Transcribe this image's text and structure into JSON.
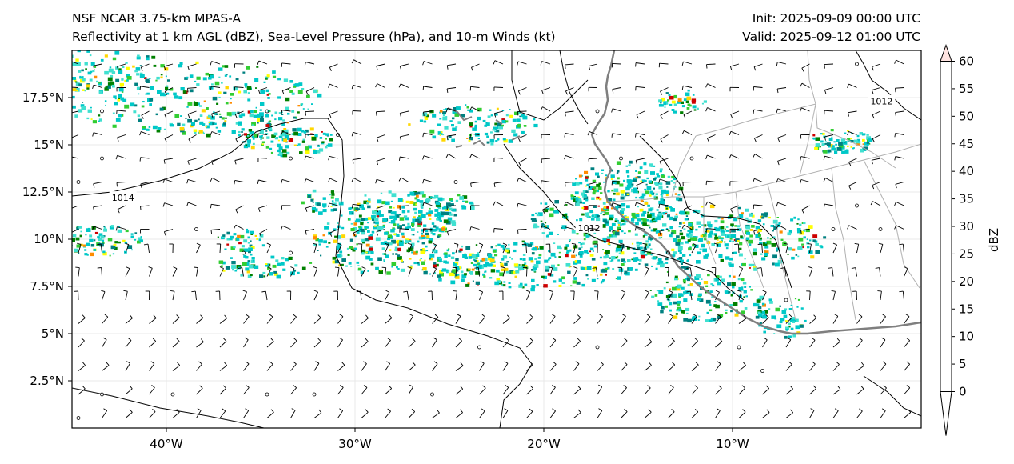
{
  "header": {
    "title_left_1": "NSF NCAR 3.75-km MPAS-A",
    "title_left_2": "Reflectivity at 1 km AGL (dBZ), Sea-Level Pressure (hPa), and 10-m Winds (kt)",
    "title_right_1": "Init: 2025-09-09 00:00 UTC",
    "title_right_2": "Valid: 2025-09-12 01:00 UTC"
  },
  "map": {
    "lon_range": [
      -45,
      0
    ],
    "lat_range": [
      0,
      20
    ],
    "lon_ticks": [
      {
        "value": -40,
        "label": "40°W"
      },
      {
        "value": -30,
        "label": "30°W"
      },
      {
        "value": -20,
        "label": "20°W"
      },
      {
        "value": -10,
        "label": "10°W"
      }
    ],
    "lat_ticks": [
      {
        "value": 2.5,
        "label": "2.5°N"
      },
      {
        "value": 5,
        "label": "5°N"
      },
      {
        "value": 7.5,
        "label": "7.5°N"
      },
      {
        "value": 10,
        "label": "10°N"
      },
      {
        "value": 12.5,
        "label": "12.5°N"
      },
      {
        "value": 15,
        "label": "15°N"
      },
      {
        "value": 17.5,
        "label": "17.5°N"
      }
    ],
    "isobar_labels": [
      {
        "text": "1014",
        "lon": -42.3,
        "lat": 12.2
      },
      {
        "text": "1012",
        "lon": -2.1,
        "lat": 17.3
      },
      {
        "text": "1012",
        "lon": -17.6,
        "lat": 10.6
      }
    ],
    "colors": {
      "coast": "#7f7f7f",
      "border": "#b0b0b0",
      "isobar": "#000000",
      "grid": "#e8e8e8"
    }
  },
  "colorbar": {
    "label": "dBZ",
    "ticks": [
      "0",
      "5",
      "10",
      "15",
      "20",
      "25",
      "30",
      "35",
      "40",
      "45",
      "50",
      "55",
      "60"
    ],
    "colors": [
      "#008080",
      "#00c8c8",
      "#40e0d0",
      "#008000",
      "#32cd32",
      "#ffff00",
      "#ffd700",
      "#ff8c00",
      "#cd0000",
      "#8b0000",
      "#ff00ff",
      "#ffe4e1"
    ]
  }
}
